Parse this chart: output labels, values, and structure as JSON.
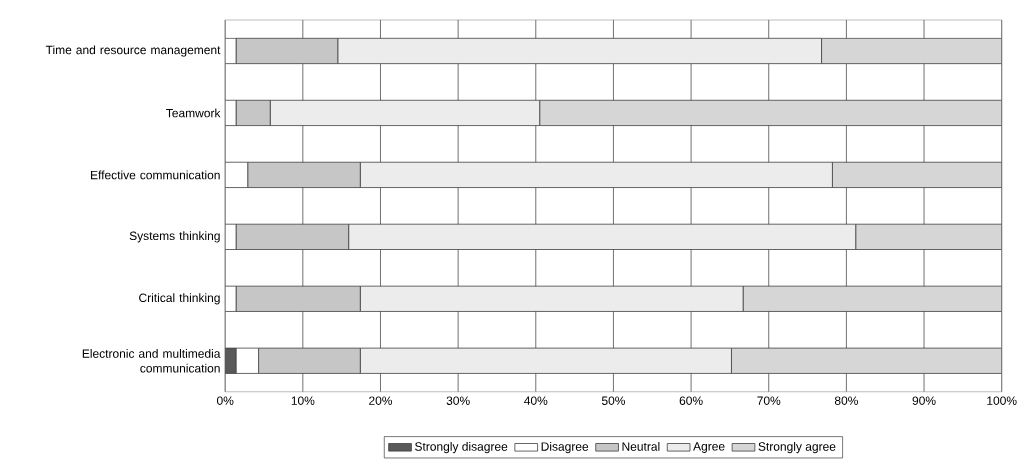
{
  "chart_data": {
    "type": "bar",
    "orientation": "horizontal",
    "stacked": true,
    "categories": [
      "Time and resource management",
      "Teamwork",
      "Effective communication",
      "Systems thinking",
      "Critical thinking",
      "Electronic and multimedia communication"
    ],
    "series": [
      {
        "name": "Strongly disagree",
        "color": "#595959",
        "values": [
          0,
          0,
          0,
          0,
          0,
          1.4
        ]
      },
      {
        "name": "Disagree",
        "color": "#ffffff",
        "values": [
          1.4,
          1.4,
          2.9,
          1.4,
          1.4,
          2.9
        ]
      },
      {
        "name": "Neutral",
        "color": "#c6c6c6",
        "values": [
          13.1,
          4.4,
          14.5,
          14.5,
          16.0,
          13.1
        ]
      },
      {
        "name": "Agree",
        "color": "#ececec",
        "values": [
          62.3,
          34.7,
          60.8,
          65.3,
          49.3,
          47.8
        ]
      },
      {
        "name": "Strongly agree",
        "color": "#d6d6d6",
        "values": [
          23.2,
          59.5,
          21.8,
          18.8,
          33.3,
          34.8
        ]
      }
    ],
    "xlim": [
      0,
      100
    ],
    "xticks": [
      {
        "value": 0,
        "label": "0%"
      },
      {
        "value": 10,
        "label": "10%"
      },
      {
        "value": 20,
        "label": "20%"
      },
      {
        "value": 30,
        "label": "30%"
      },
      {
        "value": 40,
        "label": "40%"
      },
      {
        "value": 50,
        "label": "50%"
      },
      {
        "value": 60,
        "label": "60%"
      },
      {
        "value": 70,
        "label": "70%"
      },
      {
        "value": 80,
        "label": "80%"
      },
      {
        "value": 90,
        "label": "90%"
      },
      {
        "value": 100,
        "label": "100%"
      }
    ],
    "grid": "x",
    "legend": "bottom"
  }
}
